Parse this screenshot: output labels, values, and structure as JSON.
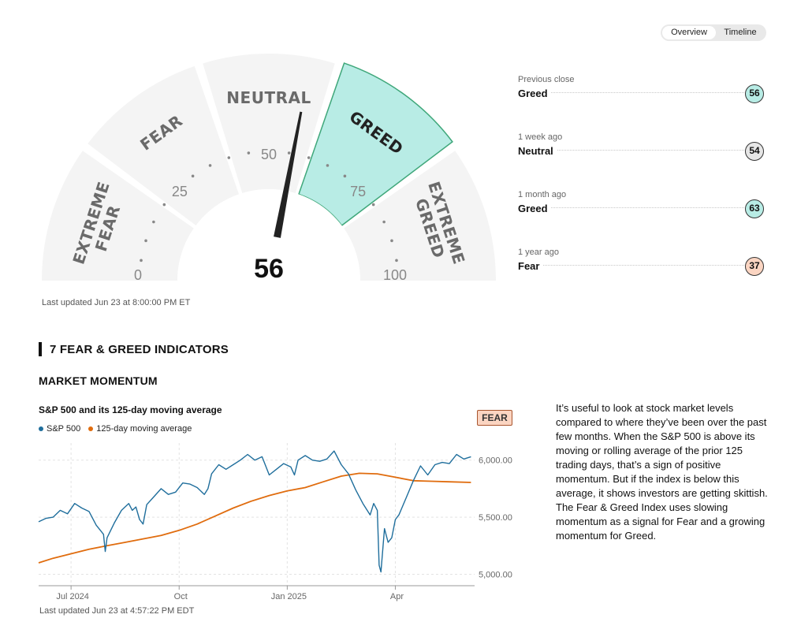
{
  "toggle": {
    "overview_label": "Overview",
    "timeline_label": "Timeline",
    "active": "Overview"
  },
  "gauge": {
    "value": 56,
    "active_zone": "Greed",
    "zones": [
      "EXTREME FEAR",
      "FEAR",
      "NEUTRAL",
      "GREED",
      "EXTREME GREED"
    ],
    "ticks": [
      "0",
      "25",
      "50",
      "75",
      "100"
    ],
    "colors": {
      "zone": "#f4f4f4",
      "active": "#b8ece5",
      "active_border": "#3fa77a",
      "needle": "#222222"
    },
    "last_updated": "Last updated Jun 23 at 8:00:00 PM ET"
  },
  "history": [
    {
      "label": "Previous close",
      "rating": "Greed",
      "value": "56",
      "color": "#b8ece5"
    },
    {
      "label": "1 week ago",
      "rating": "Neutral",
      "value": "54",
      "color": "#e6e6e6"
    },
    {
      "label": "1 month ago",
      "rating": "Greed",
      "value": "63",
      "color": "#b8ece5"
    },
    {
      "label": "1 year ago",
      "rating": "Fear",
      "value": "37",
      "color": "#fbd5c2"
    }
  ],
  "indicators_title": "7 FEAR & GREED INDICATORS",
  "indicator": {
    "name": "MARKET MOMENTUM",
    "chart_title": "S&P 500 and its 125-day moving average",
    "rating": "FEAR",
    "rating_color": "#fbd5c2",
    "description": "It’s useful to look at stock market levels compared to where they’ve been over the past few months. When the S&P 500 is above its moving or rolling average of the prior 125 trading days, that’s a sign of positive momentum. But if the index is below this average, it shows investors are getting skittish. The Fear & Greed Index uses slowing momentum as a signal for Fear and a growing momentum for Greed.",
    "last_updated": "Last updated Jun 23 at 4:57:22 PM EDT"
  },
  "chart_data": {
    "type": "line",
    "x_ticks": [
      "Jul 2024",
      "Oct",
      "Jan 2025",
      "Apr"
    ],
    "x_tick_positions": [
      0.5,
      3.5,
      6.5,
      9.5
    ],
    "y_ticks": [
      "5,000.00",
      "5,500.00",
      "6,000.00"
    ],
    "y_tick_values": [
      5000,
      5500,
      6000
    ],
    "ylim": [
      4900,
      6150
    ],
    "xlim": [
      -0.4,
      11.7
    ],
    "series": [
      {
        "name": "S&P 500",
        "color": "#1f6e9c",
        "points": [
          [
            -0.4,
            5460
          ],
          [
            -0.2,
            5490
          ],
          [
            0.0,
            5500
          ],
          [
            0.2,
            5560
          ],
          [
            0.4,
            5530
          ],
          [
            0.6,
            5620
          ],
          [
            0.8,
            5580
          ],
          [
            1.0,
            5550
          ],
          [
            1.2,
            5430
          ],
          [
            1.4,
            5350
          ],
          [
            1.45,
            5200
          ],
          [
            1.5,
            5320
          ],
          [
            1.7,
            5450
          ],
          [
            1.9,
            5560
          ],
          [
            2.1,
            5620
          ],
          [
            2.2,
            5560
          ],
          [
            2.3,
            5590
          ],
          [
            2.4,
            5480
          ],
          [
            2.5,
            5440
          ],
          [
            2.6,
            5610
          ],
          [
            2.8,
            5680
          ],
          [
            3.0,
            5750
          ],
          [
            3.2,
            5700
          ],
          [
            3.4,
            5720
          ],
          [
            3.6,
            5800
          ],
          [
            3.8,
            5790
          ],
          [
            4.0,
            5760
          ],
          [
            4.2,
            5700
          ],
          [
            4.3,
            5750
          ],
          [
            4.4,
            5880
          ],
          [
            4.6,
            5960
          ],
          [
            4.8,
            5920
          ],
          [
            5.0,
            5960
          ],
          [
            5.2,
            6000
          ],
          [
            5.4,
            6050
          ],
          [
            5.6,
            6000
          ],
          [
            5.8,
            6030
          ],
          [
            6.0,
            5870
          ],
          [
            6.2,
            5920
          ],
          [
            6.4,
            5970
          ],
          [
            6.6,
            5940
          ],
          [
            6.7,
            5870
          ],
          [
            6.8,
            6000
          ],
          [
            7.0,
            6040
          ],
          [
            7.2,
            6000
          ],
          [
            7.4,
            5990
          ],
          [
            7.6,
            6010
          ],
          [
            7.8,
            6080
          ],
          [
            8.0,
            5960
          ],
          [
            8.2,
            5880
          ],
          [
            8.4,
            5740
          ],
          [
            8.6,
            5620
          ],
          [
            8.8,
            5520
          ],
          [
            8.9,
            5620
          ],
          [
            9.0,
            5560
          ],
          [
            9.05,
            5080
          ],
          [
            9.1,
            5020
          ],
          [
            9.2,
            5400
          ],
          [
            9.3,
            5280
          ],
          [
            9.4,
            5320
          ],
          [
            9.5,
            5480
          ],
          [
            9.6,
            5520
          ],
          [
            9.8,
            5670
          ],
          [
            10.0,
            5820
          ],
          [
            10.2,
            5950
          ],
          [
            10.4,
            5870
          ],
          [
            10.6,
            5960
          ],
          [
            10.8,
            5980
          ],
          [
            11.0,
            5970
          ],
          [
            11.2,
            6050
          ],
          [
            11.4,
            6010
          ],
          [
            11.6,
            6030
          ]
        ]
      },
      {
        "name": "125-day moving average",
        "color": "#e06c0e",
        "points": [
          [
            -0.4,
            5100
          ],
          [
            0.0,
            5140
          ],
          [
            0.5,
            5180
          ],
          [
            1.0,
            5220
          ],
          [
            1.5,
            5250
          ],
          [
            2.0,
            5280
          ],
          [
            2.5,
            5310
          ],
          [
            3.0,
            5340
          ],
          [
            3.5,
            5385
          ],
          [
            4.0,
            5440
          ],
          [
            4.5,
            5510
          ],
          [
            5.0,
            5580
          ],
          [
            5.5,
            5640
          ],
          [
            6.0,
            5690
          ],
          [
            6.5,
            5730
          ],
          [
            7.0,
            5760
          ],
          [
            7.5,
            5810
          ],
          [
            8.0,
            5860
          ],
          [
            8.5,
            5885
          ],
          [
            9.0,
            5880
          ],
          [
            9.5,
            5850
          ],
          [
            10.0,
            5820
          ],
          [
            10.5,
            5815
          ],
          [
            11.0,
            5810
          ],
          [
            11.6,
            5805
          ]
        ]
      }
    ],
    "grid": true
  }
}
